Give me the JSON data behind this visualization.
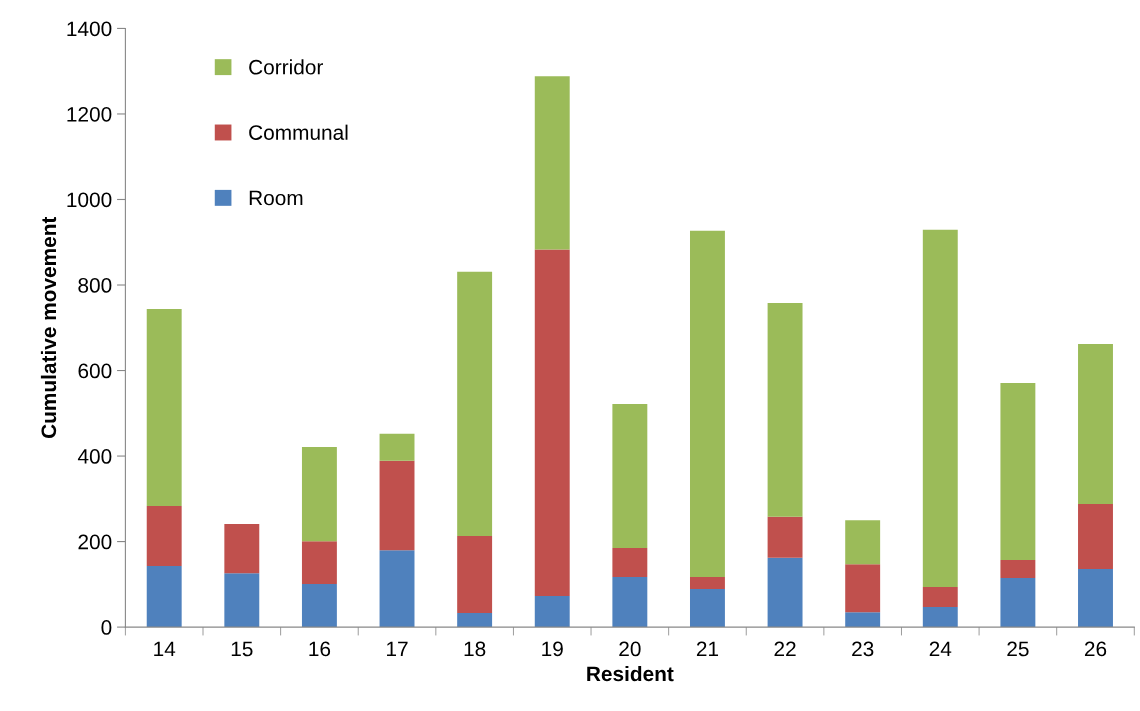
{
  "chart_data": {
    "type": "bar",
    "stacked": true,
    "xlabel": "Resident",
    "ylabel": "Cumulative movement",
    "categories": [
      "14",
      "15",
      "16",
      "17",
      "18",
      "19",
      "20",
      "21",
      "22",
      "23",
      "24",
      "25",
      "26"
    ],
    "series": [
      {
        "name": "Room",
        "color": "#4f81bd",
        "values": [
          143,
          126,
          101,
          180,
          33,
          73,
          117,
          89,
          162,
          35,
          47,
          115,
          136
        ]
      },
      {
        "name": "Communal",
        "color": "#c0504d",
        "values": [
          140,
          115,
          100,
          209,
          180,
          810,
          68,
          28,
          96,
          112,
          47,
          42,
          152
        ]
      },
      {
        "name": "Corridor",
        "color": "#9bbb59",
        "values": [
          461,
          0,
          220,
          63,
          618,
          405,
          337,
          810,
          500,
          103,
          835,
          414,
          374
        ]
      }
    ],
    "ylim": [
      0,
      1400
    ],
    "yticks": [
      0,
      200,
      400,
      600,
      800,
      1000,
      1200,
      1400
    ],
    "grid": false,
    "legend": "top left"
  }
}
